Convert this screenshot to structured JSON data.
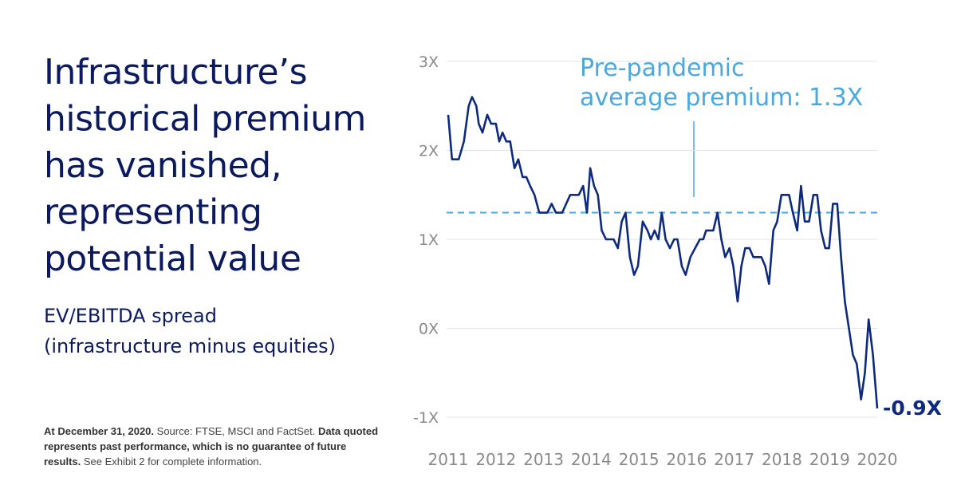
{
  "chart_data": {
    "type": "line",
    "title_lines": [
      "Infrastructure’s",
      "historical premium",
      "has vanished,",
      "representing",
      "potential value"
    ],
    "subtitle_lines": [
      "EV/EBITDA spread",
      "(infrastructure minus equities)"
    ],
    "footnote": [
      {
        "text": "At December 31, 2020.",
        "bold": true
      },
      {
        "text": " Source: FTSE, MSCI and FactSet. ",
        "bold": false
      },
      {
        "text": "Data quoted represents past performance, which is no guarantee of future results.",
        "bold": true
      },
      {
        "text": " See Exhibit 2 for complete information.",
        "bold": false
      }
    ],
    "x": [
      2011.0,
      2011.08,
      2011.22,
      2011.33,
      2011.43,
      2011.5,
      2011.59,
      2011.64,
      2011.72,
      2011.82,
      2011.9,
      2012.0,
      2012.07,
      2012.14,
      2012.22,
      2012.3,
      2012.39,
      2012.47,
      2012.56,
      2012.64,
      2012.72,
      2012.81,
      2012.91,
      2013.08,
      2013.17,
      2013.26,
      2013.39,
      2013.56,
      2013.74,
      2013.83,
      2013.91,
      2013.98,
      2014.06,
      2014.14,
      2014.22,
      2014.31,
      2014.47,
      2014.56,
      2014.64,
      2014.72,
      2014.81,
      2014.9,
      2014.98,
      2015.08,
      2015.18,
      2015.25,
      2015.33,
      2015.41,
      2015.48,
      2015.56,
      2015.65,
      2015.74,
      2015.81,
      2015.9,
      2015.98,
      2016.08,
      2016.18,
      2016.28,
      2016.35,
      2016.41,
      2016.56,
      2016.65,
      2016.73,
      2016.81,
      2016.9,
      2016.98,
      2017.07,
      2017.15,
      2017.23,
      2017.32,
      2017.4,
      2017.57,
      2017.65,
      2017.73,
      2017.82,
      2017.9,
      2017.99,
      2018.15,
      2018.23,
      2018.32,
      2018.4,
      2018.48,
      2018.57,
      2018.66,
      2018.74,
      2018.82,
      2018.91,
      2018.99,
      2019.07,
      2019.16,
      2019.24,
      2019.32,
      2019.49,
      2019.57,
      2019.66,
      2019.74,
      2019.82,
      2019.91,
      2020.0
    ],
    "values": [
      2.4,
      1.9,
      1.9,
      2.1,
      2.5,
      2.6,
      2.5,
      2.3,
      2.2,
      2.4,
      2.3,
      2.3,
      2.1,
      2.2,
      2.1,
      2.1,
      1.8,
      1.9,
      1.7,
      1.7,
      1.6,
      1.5,
      1.3,
      1.3,
      1.4,
      1.3,
      1.3,
      1.5,
      1.5,
      1.6,
      1.3,
      1.8,
      1.6,
      1.5,
      1.1,
      1.0,
      1.0,
      0.9,
      1.2,
      1.3,
      0.8,
      0.6,
      0.7,
      1.2,
      1.1,
      1.0,
      1.1,
      1.0,
      1.3,
      1.0,
      0.9,
      1.0,
      1.0,
      0.7,
      0.6,
      0.8,
      0.9,
      1.0,
      1.0,
      1.1,
      1.1,
      1.3,
      1.0,
      0.8,
      0.9,
      0.7,
      0.3,
      0.7,
      0.9,
      0.9,
      0.8,
      0.8,
      0.7,
      0.5,
      1.1,
      1.2,
      1.5,
      1.5,
      1.3,
      1.1,
      1.6,
      1.2,
      1.2,
      1.5,
      1.5,
      1.1,
      0.9,
      0.9,
      1.4,
      1.4,
      0.8,
      0.3,
      -0.3,
      -0.4,
      -0.8,
      -0.5,
      0.1,
      -0.3,
      -0.9
    ],
    "end_label": "-0.9X",
    "color": "#0d2a7e",
    "xlim": [
      2011,
      2020
    ],
    "xticks": [
      2011,
      2012,
      2013,
      2014,
      2015,
      2016,
      2017,
      2018,
      2019,
      2020
    ],
    "ylim": [
      -1,
      3
    ],
    "yticks": [
      {
        "value": -1,
        "label": "-1X"
      },
      {
        "value": 0,
        "label": "0X"
      },
      {
        "value": 1,
        "label": "1X"
      },
      {
        "value": 2,
        "label": "2X"
      },
      {
        "value": 3,
        "label": "3X"
      }
    ],
    "grid": true,
    "reference_line": {
      "value": 1.3,
      "label_lines": [
        "Pre-pandemic",
        "average premium: 1.3X"
      ],
      "color": "#4aa8e0"
    }
  }
}
